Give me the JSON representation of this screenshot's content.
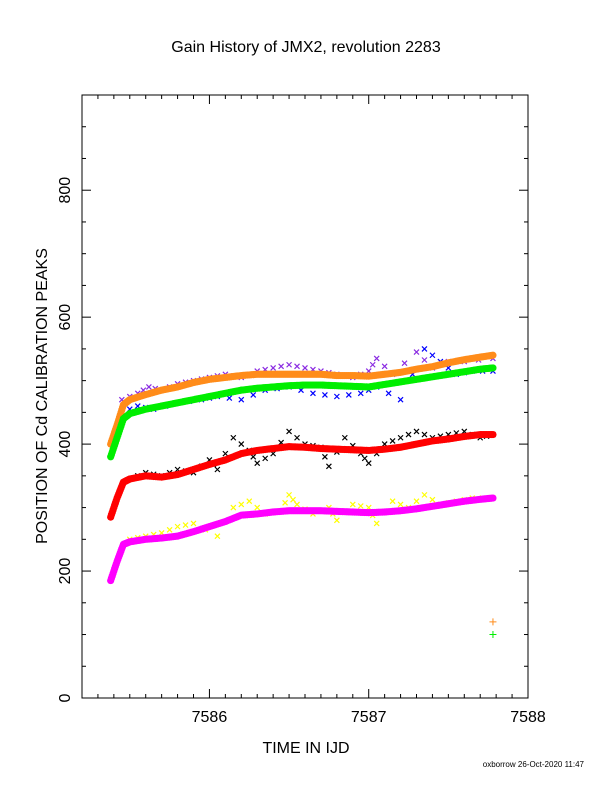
{
  "chart_data": {
    "type": "scatter",
    "title": "Gain History of JMX2, revolution 2283",
    "xlabel": "TIME IN IJD",
    "ylabel": "POSITION OF Cd CALIBRATION PEAKS",
    "xlim": [
      7585.2,
      7588.0
    ],
    "ylim": [
      0,
      950
    ],
    "xticks": [
      7586,
      7587,
      7588
    ],
    "xtick_labels": [
      "7586",
      "7587",
      "7588"
    ],
    "yticks": [
      0,
      200,
      400,
      600,
      800
    ],
    "ytick_labels": [
      "0",
      "200",
      "400",
      "600",
      "800"
    ],
    "grid": false,
    "footer": "oxborrow 26-Oct-2020 11:47",
    "colors": {
      "orange": "#ff8c1a",
      "purple": "#8a2be2",
      "blue": "#0000ff",
      "green": "#00ee00",
      "black": "#000000",
      "red": "#ff0000",
      "yellow": "#ffff00",
      "magenta": "#ff00ff"
    },
    "series": [
      {
        "color_key": "purple",
        "marker": "x",
        "x": [
          7585.45,
          7585.55,
          7585.62,
          7585.7,
          7585.8,
          7585.9,
          7586.0,
          7586.1,
          7586.2,
          7586.3,
          7586.4,
          7586.5,
          7586.6,
          7586.7,
          7586.8,
          7586.9,
          7587.0,
          7587.05,
          7587.15,
          7587.3,
          7587.4,
          7587.5,
          7587.6,
          7587.78
        ],
        "y": [
          470,
          480,
          490,
          485,
          495,
          500,
          505,
          510,
          505,
          515,
          520,
          525,
          520,
          515,
          510,
          505,
          515,
          535,
          510,
          545,
          520,
          530,
          530,
          535
        ]
      },
      {
        "color_key": "blue",
        "marker": "x",
        "x": [
          7585.45,
          7585.55,
          7585.65,
          7585.8,
          7585.95,
          7586.05,
          7586.2,
          7586.35,
          7586.5,
          7586.65,
          7586.8,
          7586.95,
          7587.05,
          7587.2,
          7587.35,
          7587.45,
          7587.55,
          7587.65,
          7587.78
        ],
        "y": [
          450,
          460,
          455,
          465,
          470,
          475,
          470,
          485,
          490,
          480,
          475,
          480,
          490,
          470,
          550,
          530,
          510,
          515,
          515
        ]
      },
      {
        "color_key": "black",
        "marker": "x",
        "x": [
          7585.5,
          7585.6,
          7585.7,
          7585.8,
          7585.9,
          7586.0,
          7586.05,
          7586.15,
          7586.25,
          7586.3,
          7586.4,
          7586.5,
          7586.6,
          7586.7,
          7586.75,
          7586.85,
          7586.95,
          7587.0,
          7587.1,
          7587.2,
          7587.3,
          7587.4,
          7587.5,
          7587.6,
          7587.7,
          7587.78
        ],
        "y": [
          345,
          355,
          350,
          360,
          355,
          375,
          360,
          410,
          390,
          370,
          385,
          420,
          400,
          395,
          365,
          410,
          385,
          370,
          400,
          410,
          420,
          410,
          415,
          420,
          410,
          415
        ]
      },
      {
        "color_key": "yellow",
        "marker": "x",
        "x": [
          7585.5,
          7585.6,
          7585.7,
          7585.8,
          7585.9,
          7586.05,
          7586.15,
          7586.25,
          7586.35,
          7586.45,
          7586.5,
          7586.55,
          7586.65,
          7586.75,
          7586.8,
          7586.9,
          7587.0,
          7587.05,
          7587.15,
          7587.25,
          7587.35,
          7587.45,
          7587.55,
          7587.65,
          7587.78
        ],
        "y": [
          250,
          255,
          260,
          270,
          275,
          255,
          300,
          310,
          290,
          295,
          320,
          305,
          290,
          300,
          280,
          305,
          300,
          275,
          310,
          300,
          320,
          305,
          310,
          315,
          315
        ]
      },
      {
        "color_key": "orange",
        "marker": "dot",
        "x": [
          7585.38,
          7585.42,
          7585.46,
          7585.5,
          7585.6,
          7585.7,
          7585.8,
          7585.9,
          7586.0,
          7586.1,
          7586.2,
          7586.3,
          7586.4,
          7586.5,
          7586.6,
          7586.7,
          7586.8,
          7586.9,
          7587.0,
          7587.1,
          7587.2,
          7587.3,
          7587.4,
          7587.5,
          7587.6,
          7587.7,
          7587.78
        ],
        "y": [
          400,
          430,
          462,
          470,
          478,
          485,
          490,
          497,
          502,
          505,
          508,
          510,
          510,
          510,
          510,
          510,
          508,
          508,
          507,
          510,
          513,
          518,
          522,
          528,
          533,
          537,
          540
        ]
      },
      {
        "color_key": "green",
        "marker": "dot",
        "x": [
          7585.38,
          7585.42,
          7585.46,
          7585.5,
          7585.6,
          7585.7,
          7585.8,
          7585.9,
          7586.0,
          7586.1,
          7586.2,
          7586.3,
          7586.4,
          7586.5,
          7586.6,
          7586.7,
          7586.8,
          7586.9,
          7587.0,
          7587.1,
          7587.2,
          7587.3,
          7587.4,
          7587.5,
          7587.6,
          7587.7,
          7587.78
        ],
        "y": [
          380,
          410,
          440,
          448,
          455,
          460,
          465,
          470,
          475,
          480,
          485,
          488,
          490,
          492,
          493,
          493,
          492,
          491,
          490,
          494,
          498,
          502,
          506,
          510,
          514,
          518,
          520
        ]
      },
      {
        "color_key": "red",
        "marker": "dot",
        "x": [
          7585.38,
          7585.42,
          7585.46,
          7585.5,
          7585.6,
          7585.7,
          7585.8,
          7585.9,
          7586.0,
          7586.1,
          7586.2,
          7586.3,
          7586.4,
          7586.5,
          7586.6,
          7586.7,
          7586.8,
          7586.9,
          7587.0,
          7587.1,
          7587.2,
          7587.3,
          7587.4,
          7587.5,
          7587.6,
          7587.7,
          7587.78
        ],
        "y": [
          285,
          315,
          340,
          345,
          350,
          348,
          352,
          360,
          368,
          375,
          385,
          390,
          393,
          396,
          395,
          393,
          392,
          391,
          390,
          392,
          395,
          400,
          405,
          408,
          412,
          415,
          415
        ]
      },
      {
        "color_key": "magenta",
        "marker": "dot",
        "x": [
          7585.38,
          7585.42,
          7585.46,
          7585.5,
          7585.6,
          7585.7,
          7585.8,
          7585.9,
          7586.0,
          7586.1,
          7586.2,
          7586.3,
          7586.4,
          7586.5,
          7586.6,
          7586.7,
          7586.8,
          7586.9,
          7587.0,
          7587.1,
          7587.2,
          7587.3,
          7587.4,
          7587.5,
          7587.6,
          7587.7,
          7587.78
        ],
        "y": [
          185,
          215,
          242,
          246,
          250,
          252,
          255,
          262,
          270,
          278,
          288,
          290,
          293,
          295,
          295,
          295,
          294,
          293,
          292,
          293,
          295,
          298,
          302,
          306,
          310,
          313,
          315
        ]
      },
      {
        "color_key": "orange",
        "marker": "plus",
        "x": [
          7587.78
        ],
        "y": [
          120
        ]
      },
      {
        "color_key": "green",
        "marker": "plus",
        "x": [
          7587.78
        ],
        "y": [
          100
        ]
      }
    ]
  }
}
